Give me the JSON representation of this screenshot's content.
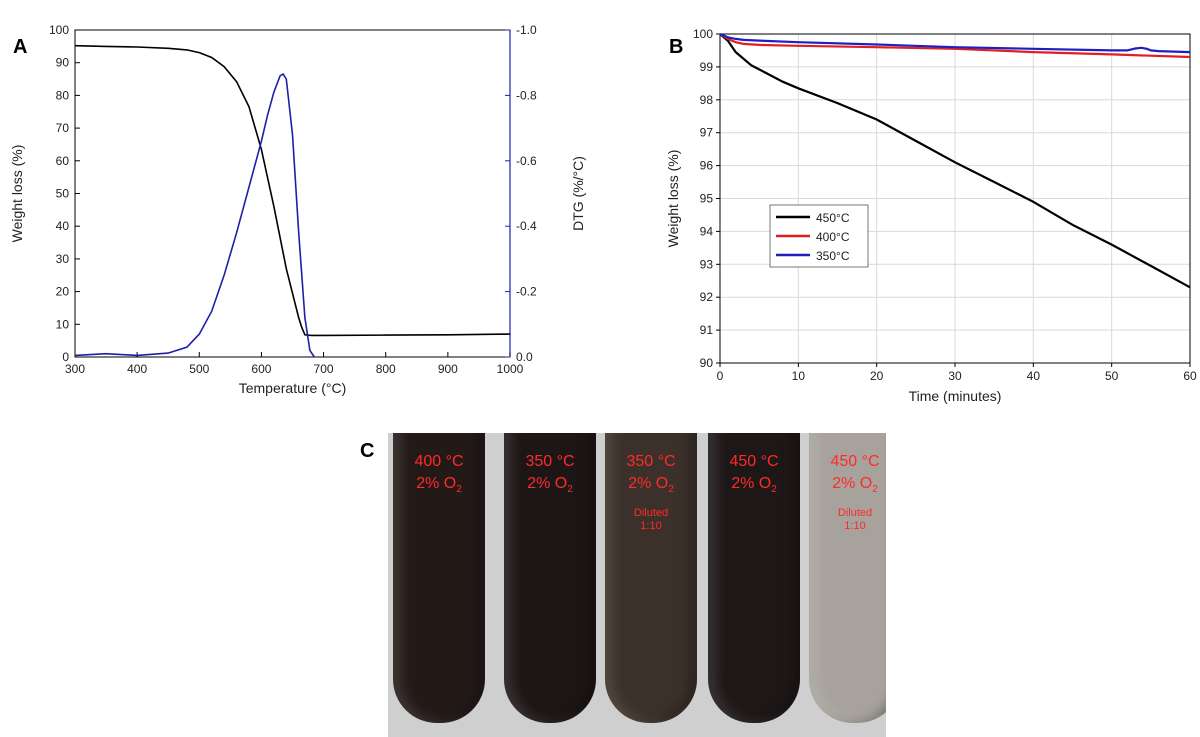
{
  "panels": {
    "a": "A",
    "b": "B",
    "c": "C"
  },
  "chart_data": [
    {
      "type": "line",
      "xlabel": "Temperature (°C)",
      "ylabel": "Weight loss (%)",
      "y2label": "DTG (%/°C)",
      "xlim": [
        300,
        1000
      ],
      "ylim": [
        0,
        100
      ],
      "y2lim": [
        0.0,
        -1.0
      ],
      "xticks": [
        300,
        400,
        500,
        600,
        700,
        800,
        900,
        1000
      ],
      "yticks": [
        0,
        10,
        20,
        30,
        40,
        50,
        60,
        70,
        80,
        90,
        100
      ],
      "y2ticks": [
        "0.0",
        "-0.2",
        "-0.4",
        "-0.6",
        "-0.8",
        "-1.0"
      ],
      "grid": false,
      "series": [
        {
          "axis": "left",
          "color": "#000000",
          "x": [
            300,
            350,
            400,
            450,
            480,
            500,
            520,
            540,
            560,
            580,
            600,
            620,
            640,
            660,
            665,
            670,
            680,
            700,
            800,
            900,
            1000
          ],
          "y": [
            95.2,
            95.0,
            94.8,
            94.4,
            93.9,
            93.1,
            91.6,
            88.8,
            84.2,
            76.5,
            63.5,
            46.0,
            27.0,
            12.0,
            9.0,
            6.8,
            6.6,
            6.6,
            6.7,
            6.8,
            7.0
          ]
        },
        {
          "axis": "right",
          "color": "#1f1fa8",
          "x": [
            300,
            350,
            400,
            450,
            480,
            500,
            520,
            540,
            560,
            580,
            600,
            610,
            620,
            630,
            635,
            640,
            650,
            660,
            670,
            678,
            685
          ],
          "y": [
            -0.005,
            -0.01,
            -0.005,
            -0.012,
            -0.03,
            -0.07,
            -0.14,
            -0.25,
            -0.38,
            -0.52,
            -0.66,
            -0.74,
            -0.81,
            -0.86,
            -0.865,
            -0.85,
            -0.68,
            -0.38,
            -0.12,
            -0.02,
            0.0
          ]
        }
      ]
    },
    {
      "type": "line",
      "xlabel": "Time (minutes)",
      "ylabel": "Weight loss (%)",
      "xlim": [
        0,
        60
      ],
      "ylim": [
        90,
        100
      ],
      "xticks": [
        0,
        10,
        20,
        30,
        40,
        50,
        60
      ],
      "yticks": [
        90,
        91,
        92,
        93,
        94,
        95,
        96,
        97,
        98,
        99,
        100
      ],
      "grid": true,
      "legend": "left-middle",
      "series": [
        {
          "name": "450°C",
          "color": "#000000",
          "x": [
            0,
            1,
            2,
            4,
            6,
            8,
            10,
            15,
            20,
            25,
            30,
            35,
            40,
            45,
            50,
            55,
            60
          ],
          "y": [
            100,
            99.8,
            99.45,
            99.05,
            98.8,
            98.55,
            98.35,
            97.9,
            97.4,
            96.75,
            96.1,
            95.5,
            94.9,
            94.2,
            93.6,
            92.95,
            92.3
          ]
        },
        {
          "name": "400°C",
          "color": "#e02020",
          "x": [
            0,
            1,
            2,
            3,
            5,
            10,
            20,
            30,
            40,
            50,
            60
          ],
          "y": [
            100,
            99.85,
            99.75,
            99.7,
            99.67,
            99.64,
            99.6,
            99.55,
            99.45,
            99.38,
            99.3
          ]
        },
        {
          "name": "350°C",
          "color": "#1f1fc0",
          "x": [
            0,
            1,
            2,
            3,
            5,
            10,
            20,
            30,
            40,
            50,
            52,
            53,
            53.8,
            54.5,
            55,
            56,
            60
          ],
          "y": [
            100,
            99.9,
            99.85,
            99.82,
            99.8,
            99.75,
            99.68,
            99.6,
            99.55,
            99.5,
            99.5,
            99.56,
            99.58,
            99.55,
            99.5,
            99.48,
            99.45
          ]
        }
      ]
    }
  ],
  "photo": {
    "tubes": [
      {
        "line1": "400 °C",
        "line2": "2% O",
        "sub": "2",
        "line3a": "",
        "line3b": "",
        "color": "#231a18"
      },
      {
        "line1": "350 °C",
        "line2": "2% O",
        "sub": "2",
        "line3a": "",
        "line3b": "",
        "color": "#1d1616"
      },
      {
        "line1": "350 °C",
        "line2": "2% O",
        "sub": "2",
        "line3a": "Diluted",
        "line3b": "1:10",
        "color": "#3b302a"
      },
      {
        "line1": "450 °C",
        "line2": "2% O",
        "sub": "2",
        "line3a": "",
        "line3b": "",
        "color": "#1e1717"
      },
      {
        "line1": "450 °C",
        "line2": "2% O",
        "sub": "2",
        "line3a": "Diluted",
        "line3b": "1:10",
        "color": "#a7a39c"
      }
    ]
  }
}
